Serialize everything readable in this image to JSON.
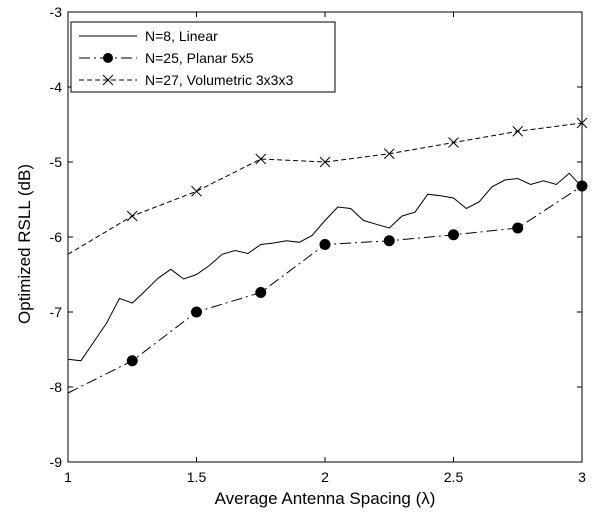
{
  "chart_data": {
    "type": "line",
    "xlabel": "Average Antenna Spacing (λ)",
    "ylabel": "Optimized RSLL (dB)",
    "xlim": [
      1,
      3
    ],
    "ylim": [
      -9,
      -3
    ],
    "x_ticks": [
      1,
      1.5,
      2,
      2.5,
      3
    ],
    "x_tick_labels": [
      "1",
      "1.5",
      "2",
      "2.5",
      "3"
    ],
    "y_ticks": [
      -9,
      -8,
      -7,
      -6,
      -5,
      -4,
      -3
    ],
    "y_tick_labels": [
      "-9",
      "-8",
      "-7",
      "-6",
      "-5",
      "-4",
      "-3"
    ],
    "grid": false,
    "legend_position": "top-left",
    "series": [
      {
        "name": "N=8, Linear",
        "line_style": "solid",
        "marker": "none",
        "x": [
          1.0,
          1.05,
          1.1,
          1.15,
          1.2,
          1.25,
          1.3,
          1.35,
          1.4,
          1.45,
          1.5,
          1.55,
          1.6,
          1.65,
          1.7,
          1.75,
          1.8,
          1.85,
          1.9,
          1.95,
          2.0,
          2.05,
          2.1,
          2.15,
          2.2,
          2.25,
          2.3,
          2.35,
          2.4,
          2.45,
          2.5,
          2.55,
          2.6,
          2.65,
          2.7,
          2.75,
          2.8,
          2.85,
          2.9,
          2.95,
          3.0
        ],
        "y": [
          -7.63,
          -7.65,
          -7.4,
          -7.15,
          -6.82,
          -6.88,
          -6.72,
          -6.55,
          -6.43,
          -6.56,
          -6.5,
          -6.38,
          -6.23,
          -6.18,
          -6.22,
          -6.1,
          -6.08,
          -6.05,
          -6.07,
          -5.98,
          -5.78,
          -5.6,
          -5.62,
          -5.78,
          -5.83,
          -5.88,
          -5.72,
          -5.67,
          -5.43,
          -5.45,
          -5.48,
          -5.62,
          -5.53,
          -5.33,
          -5.24,
          -5.22,
          -5.3,
          -5.25,
          -5.3,
          -5.15,
          -5.33
        ]
      },
      {
        "name": "N=25, Planar 5x5",
        "line_style": "dash-dot",
        "marker": "filled-circle",
        "x": [
          1.0,
          1.25,
          1.5,
          1.75,
          2.0,
          2.25,
          2.5,
          2.75,
          3.0
        ],
        "y": [
          -8.08,
          -7.65,
          -7.0,
          -6.74,
          -6.1,
          -6.05,
          -5.97,
          -5.88,
          -5.32
        ],
        "marker_indices": [
          1,
          2,
          3,
          4,
          5,
          6,
          7,
          8
        ]
      },
      {
        "name": "N=27, Volumetric 3x3x3",
        "line_style": "dashed",
        "marker": "x",
        "x": [
          1.0,
          1.25,
          1.5,
          1.75,
          2.0,
          2.25,
          2.5,
          2.75,
          3.0
        ],
        "y": [
          -6.23,
          -5.72,
          -5.39,
          -4.96,
          -5.0,
          -4.89,
          -4.74,
          -4.59,
          -4.48
        ],
        "marker_indices": [
          1,
          2,
          3,
          4,
          5,
          6,
          7,
          8
        ]
      }
    ]
  }
}
